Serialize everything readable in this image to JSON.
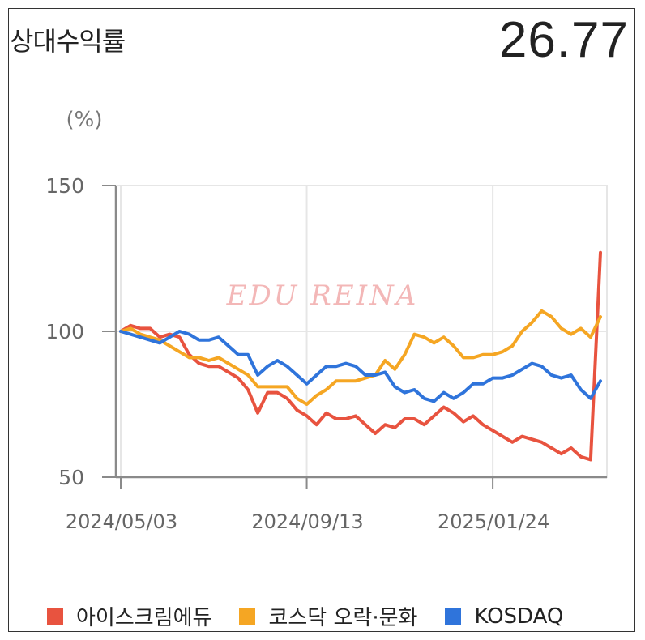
{
  "header": {
    "title": "상대수익률",
    "value": "26.77"
  },
  "watermark": "EDU REINA",
  "colors": {
    "axis": "#8a8a8a",
    "grid": "#e6e6e6",
    "tick_text": "#666666",
    "watermark": "#f3b7b7"
  },
  "chart_data": {
    "type": "line",
    "title": "",
    "xlabel": "",
    "ylabel": "(%)",
    "ylim": [
      50,
      150
    ],
    "yticks": [
      "150",
      "100",
      "50"
    ],
    "xlim": [
      "2024-05-03",
      "2025-04-11"
    ],
    "xticks": [
      {
        "date": "2024-05-03",
        "label": "2024/05/03"
      },
      {
        "date": "2024-09-13",
        "label": "2024/09/13"
      },
      {
        "date": "2025-01-24",
        "label": "2025/01/24"
      }
    ],
    "grid": true,
    "legend_position": "bottom",
    "series": [
      {
        "name": "아이스크림에듀",
        "color": "#e8533f",
        "points": [
          [
            "2024-05-03",
            100
          ],
          [
            "2024-05-10",
            102
          ],
          [
            "2024-05-17",
            101
          ],
          [
            "2024-05-24",
            101
          ],
          [
            "2024-05-31",
            98
          ],
          [
            "2024-06-07",
            99
          ],
          [
            "2024-06-14",
            98
          ],
          [
            "2024-06-21",
            92
          ],
          [
            "2024-06-28",
            89
          ],
          [
            "2024-07-05",
            88
          ],
          [
            "2024-07-12",
            88
          ],
          [
            "2024-07-19",
            86
          ],
          [
            "2024-07-26",
            84
          ],
          [
            "2024-08-02",
            80
          ],
          [
            "2024-08-09",
            72
          ],
          [
            "2024-08-16",
            79
          ],
          [
            "2024-08-23",
            79
          ],
          [
            "2024-08-30",
            77
          ],
          [
            "2024-09-06",
            73
          ],
          [
            "2024-09-13",
            71
          ],
          [
            "2024-09-20",
            68
          ],
          [
            "2024-09-27",
            72
          ],
          [
            "2024-10-04",
            70
          ],
          [
            "2024-10-11",
            70
          ],
          [
            "2024-10-18",
            71
          ],
          [
            "2024-10-25",
            68
          ],
          [
            "2024-11-01",
            65
          ],
          [
            "2024-11-08",
            68
          ],
          [
            "2024-11-15",
            67
          ],
          [
            "2024-11-22",
            70
          ],
          [
            "2024-11-29",
            70
          ],
          [
            "2024-12-06",
            68
          ],
          [
            "2024-12-13",
            71
          ],
          [
            "2024-12-20",
            74
          ],
          [
            "2024-12-27",
            72
          ],
          [
            "2025-01-03",
            69
          ],
          [
            "2025-01-10",
            71
          ],
          [
            "2025-01-17",
            68
          ],
          [
            "2025-01-24",
            66
          ],
          [
            "2025-01-31",
            64
          ],
          [
            "2025-02-07",
            62
          ],
          [
            "2025-02-14",
            64
          ],
          [
            "2025-02-21",
            63
          ],
          [
            "2025-02-28",
            62
          ],
          [
            "2025-03-07",
            60
          ],
          [
            "2025-03-14",
            58
          ],
          [
            "2025-03-21",
            60
          ],
          [
            "2025-03-28",
            57
          ],
          [
            "2025-04-04",
            56
          ],
          [
            "2025-04-11",
            127
          ]
        ]
      },
      {
        "name": "코스닥 오락·문화",
        "color": "#f5a623",
        "points": [
          [
            "2024-05-03",
            100
          ],
          [
            "2024-05-10",
            101
          ],
          [
            "2024-05-17",
            99
          ],
          [
            "2024-05-24",
            98
          ],
          [
            "2024-05-31",
            97
          ],
          [
            "2024-06-07",
            95
          ],
          [
            "2024-06-14",
            93
          ],
          [
            "2024-06-21",
            91
          ],
          [
            "2024-06-28",
            91
          ],
          [
            "2024-07-05",
            90
          ],
          [
            "2024-07-12",
            91
          ],
          [
            "2024-07-19",
            89
          ],
          [
            "2024-07-26",
            87
          ],
          [
            "2024-08-02",
            85
          ],
          [
            "2024-08-09",
            81
          ],
          [
            "2024-08-16",
            81
          ],
          [
            "2024-08-23",
            81
          ],
          [
            "2024-08-30",
            81
          ],
          [
            "2024-09-06",
            77
          ],
          [
            "2024-09-13",
            75
          ],
          [
            "2024-09-20",
            78
          ],
          [
            "2024-09-27",
            80
          ],
          [
            "2024-10-04",
            83
          ],
          [
            "2024-10-11",
            83
          ],
          [
            "2024-10-18",
            83
          ],
          [
            "2024-10-25",
            84
          ],
          [
            "2024-11-01",
            85
          ],
          [
            "2024-11-08",
            90
          ],
          [
            "2024-11-15",
            87
          ],
          [
            "2024-11-22",
            92
          ],
          [
            "2024-11-29",
            99
          ],
          [
            "2024-12-06",
            98
          ],
          [
            "2024-12-13",
            96
          ],
          [
            "2024-12-20",
            98
          ],
          [
            "2024-12-27",
            95
          ],
          [
            "2025-01-03",
            91
          ],
          [
            "2025-01-10",
            91
          ],
          [
            "2025-01-17",
            92
          ],
          [
            "2025-01-24",
            92
          ],
          [
            "2025-01-31",
            93
          ],
          [
            "2025-02-07",
            95
          ],
          [
            "2025-02-14",
            100
          ],
          [
            "2025-02-21",
            103
          ],
          [
            "2025-02-28",
            107
          ],
          [
            "2025-03-07",
            105
          ],
          [
            "2025-03-14",
            101
          ],
          [
            "2025-03-21",
            99
          ],
          [
            "2025-03-28",
            101
          ],
          [
            "2025-04-04",
            98
          ],
          [
            "2025-04-11",
            105
          ]
        ]
      },
      {
        "name": "KOSDAQ",
        "color": "#2f74db",
        "points": [
          [
            "2024-05-03",
            100
          ],
          [
            "2024-05-10",
            99
          ],
          [
            "2024-05-17",
            98
          ],
          [
            "2024-05-24",
            97
          ],
          [
            "2024-05-31",
            96
          ],
          [
            "2024-06-07",
            98
          ],
          [
            "2024-06-14",
            100
          ],
          [
            "2024-06-21",
            99
          ],
          [
            "2024-06-28",
            97
          ],
          [
            "2024-07-05",
            97
          ],
          [
            "2024-07-12",
            98
          ],
          [
            "2024-07-19",
            95
          ],
          [
            "2024-07-26",
            92
          ],
          [
            "2024-08-02",
            92
          ],
          [
            "2024-08-09",
            85
          ],
          [
            "2024-08-16",
            88
          ],
          [
            "2024-08-23",
            90
          ],
          [
            "2024-08-30",
            88
          ],
          [
            "2024-09-06",
            85
          ],
          [
            "2024-09-13",
            82
          ],
          [
            "2024-09-20",
            85
          ],
          [
            "2024-09-27",
            88
          ],
          [
            "2024-10-04",
            88
          ],
          [
            "2024-10-11",
            89
          ],
          [
            "2024-10-18",
            88
          ],
          [
            "2024-10-25",
            85
          ],
          [
            "2024-11-01",
            85
          ],
          [
            "2024-11-08",
            86
          ],
          [
            "2024-11-15",
            81
          ],
          [
            "2024-11-22",
            79
          ],
          [
            "2024-11-29",
            80
          ],
          [
            "2024-12-06",
            77
          ],
          [
            "2024-12-13",
            76
          ],
          [
            "2024-12-20",
            79
          ],
          [
            "2024-12-27",
            77
          ],
          [
            "2025-01-03",
            79
          ],
          [
            "2025-01-10",
            82
          ],
          [
            "2025-01-17",
            82
          ],
          [
            "2025-01-24",
            84
          ],
          [
            "2025-01-31",
            84
          ],
          [
            "2025-02-07",
            85
          ],
          [
            "2025-02-14",
            87
          ],
          [
            "2025-02-21",
            89
          ],
          [
            "2025-02-28",
            88
          ],
          [
            "2025-03-07",
            85
          ],
          [
            "2025-03-14",
            84
          ],
          [
            "2025-03-21",
            85
          ],
          [
            "2025-03-28",
            80
          ],
          [
            "2025-04-04",
            77
          ],
          [
            "2025-04-11",
            83
          ]
        ]
      }
    ]
  }
}
